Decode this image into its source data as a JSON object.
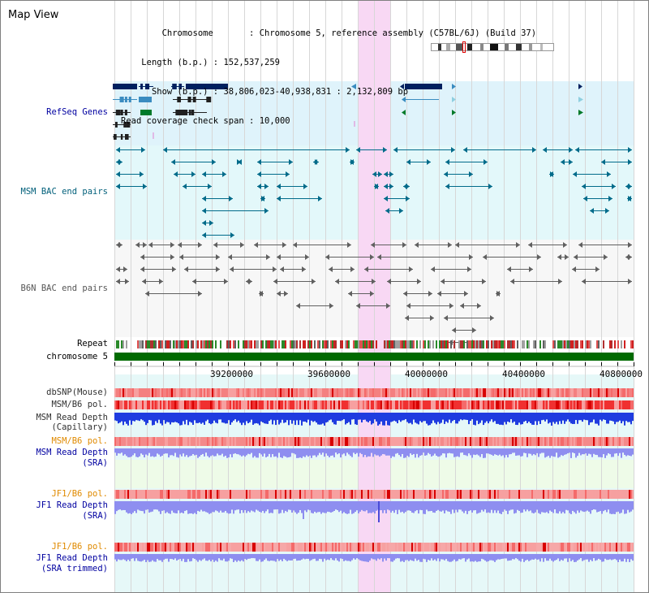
{
  "view_title": "Map View",
  "info": {
    "chromosome_key": "Chromosome",
    "chromosome_val": "Chromosome 5, reference assembly (C57BL/6J) (Build 37)",
    "length_key": "Length (b.p.)",
    "length_val": "152,537,259",
    "show_key": "Show (b.p.)",
    "show_val": "38,806,023-40,938,831 : 2,132,809 bp",
    "coverage_key": "Read coverage check span",
    "coverage_val": "10,000"
  },
  "tracks": {
    "refseq": "RefSeq Genes",
    "msm_bac": "MSM BAC end pairs",
    "b6n_bac": "B6N BAC end pairs",
    "repeat": "Repeat",
    "chromosome": "chromosome 5",
    "dbsnp": "dbSNP(Mouse)",
    "msm_b6_pol_1": "MSM/B6 pol.",
    "msm_depth_cap_1": "MSM Read Depth",
    "msm_depth_cap_2": "(Capillary)",
    "msm_b6_pol_2": "MSM/B6 pol.",
    "msm_depth_sra_1": "MSM Read Depth",
    "msm_depth_sra_2": "(SRA)",
    "jf1_b6_pol_1": "JF1/B6 pol.",
    "jf1_depth_sra_1": "JF1 Read Depth",
    "jf1_depth_sra_2": "(SRA)",
    "jf1_b6_pol_2": "JF1/B6 pol.",
    "jf1_depth_trim_1": "JF1 Read Depth",
    "jf1_depth_trim_2": "(SRA trimmed)"
  },
  "axis_ticks": [
    "39200000",
    "39600000",
    "40000000",
    "40400000",
    "40800000"
  ],
  "colors": {
    "refseq_bg": "#dff3fb",
    "msm_bg": "#e3f8fa",
    "b6n_bg": "#f7f7f7",
    "highlight": "#f8d8f4",
    "refseq_dark": "#00205f",
    "refseq_mid": "#3a8cc0",
    "refseq_green": "#007a2a",
    "msm_pair": "#006b8a",
    "b6n_pair": "#606060",
    "chromosome_bar": "#006a00",
    "depth_blue": "#1f3ce0",
    "depth_light": "#8e8ef0",
    "pol_red": "#f03030"
  }
}
